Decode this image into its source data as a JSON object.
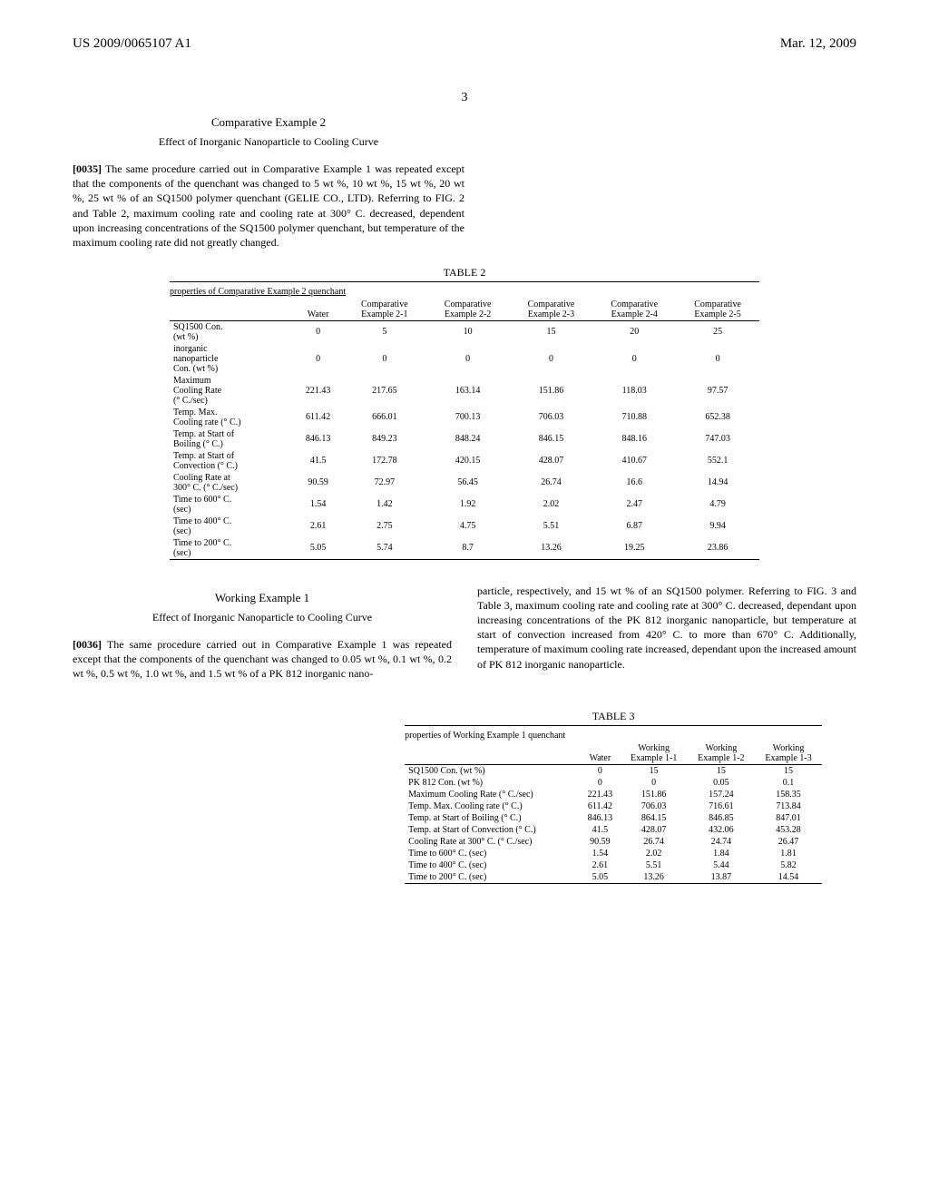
{
  "header": {
    "patent_id": "US 2009/0065107 A1",
    "date": "Mar. 12, 2009"
  },
  "page_number": "3",
  "sections": {
    "comp_ex2": {
      "title": "Comparative Example 2",
      "subtitle": "Effect of Inorganic Nanoparticle to Cooling Curve",
      "para_num": "[0035]",
      "para_text": "The same procedure carried out in Comparative Example 1 was repeated except that the components of the quenchant was changed to 5 wt %, 10 wt %, 15 wt %, 20 wt %, 25 wt % of an SQ1500 polymer quenchant (GELIE CO., LTD). Referring to FIG. 2 and Table 2, maximum cooling rate and cooling rate at 300° C. decreased, dependent upon increasing concentrations of the SQ1500 polymer quenchant, but temperature of the maximum cooling rate did not greatly changed."
    },
    "work_ex1": {
      "title": "Working Example 1",
      "subtitle": "Effect of Inorganic Nanoparticle to Cooling Curve",
      "para_num": "[0036]",
      "para_text_left": "The same procedure carried out in Comparative Example 1 was repeated except that the components of the quenchant was changed to 0.05 wt %, 0.1 wt %, 0.2 wt %, 0.5 wt %, 1.0 wt %, and 1.5 wt % of a PK 812 inorganic nano-",
      "para_text_right": "particle, respectively, and 15 wt % of an SQ1500 polymer. Referring to FIG. 3 and Table 3, maximum cooling rate and cooling rate at 300° C. decreased, dependant upon increasing concentrations of the PK 812 inorganic nanoparticle, but temperature at start of convection increased from 420° C. to more than 670° C. Additionally, temperature of maximum cooling rate increased, dependant upon the increased amount of PK 812 inorganic nanoparticle."
    }
  },
  "table2": {
    "label": "TABLE 2",
    "caption": "properties of Comparative Example 2 quenchant",
    "headers": [
      "",
      "Water",
      "Comparative\nExample 2-1",
      "Comparative\nExample 2-2",
      "Comparative\nExample 2-3",
      "Comparative\nExample 2-4",
      "Comparative\nExample 2-5"
    ],
    "rows": [
      [
        "SQ1500 Con.\n(wt %)",
        "0",
        "5",
        "10",
        "15",
        "20",
        "25"
      ],
      [
        "inorganic\nnanoparticle\nCon. (wt %)",
        "0",
        "0",
        "0",
        "0",
        "0",
        "0"
      ],
      [
        "Maximum\nCooling Rate\n(° C./sec)",
        "221.43",
        "217.65",
        "163.14",
        "151.86",
        "118.03",
        "97.57"
      ],
      [
        "Temp. Max.\nCooling rate (° C.)",
        "611.42",
        "666.01",
        "700.13",
        "706.03",
        "710.88",
        "652.38"
      ],
      [
        "Temp. at Start of\nBoiling (° C.)",
        "846.13",
        "849.23",
        "848.24",
        "846.15",
        "848.16",
        "747.03"
      ],
      [
        "Temp. at Start of\nConvection (° C.)",
        "41.5",
        "172.78",
        "420.15",
        "428.07",
        "410.67",
        "552.1"
      ],
      [
        "Cooling Rate at\n300° C. (° C./sec)",
        "90.59",
        "72.97",
        "56.45",
        "26.74",
        "16.6",
        "14.94"
      ],
      [
        "Time to 600° C.\n(sec)",
        "1.54",
        "1.42",
        "1.92",
        "2.02",
        "2.47",
        "4.79"
      ],
      [
        "Time to 400° C.\n(sec)",
        "2.61",
        "2.75",
        "4.75",
        "5.51",
        "6.87",
        "9.94"
      ],
      [
        "Time to 200° C.\n(sec)",
        "5.05",
        "5.74",
        "8.7",
        "13.26",
        "19.25",
        "23.86"
      ]
    ]
  },
  "table3": {
    "label": "TABLE 3",
    "caption": "properties of Working Example 1 quenchant",
    "headers": [
      "",
      "Water",
      "Working\nExample 1-1",
      "Working\nExample 1-2",
      "Working\nExample 1-3"
    ],
    "rows": [
      [
        "SQ1500 Con. (wt %)",
        "0",
        "15",
        "15",
        "15"
      ],
      [
        "PK 812 Con. (wt %)",
        "0",
        "0",
        "0.05",
        "0.1"
      ],
      [
        "Maximum Cooling Rate (° C./sec)",
        "221.43",
        "151.86",
        "157.24",
        "158.35"
      ],
      [
        "Temp. Max. Cooling rate (° C.)",
        "611.42",
        "706.03",
        "716.61",
        "713.84"
      ],
      [
        "Temp. at Start of Boiling (° C.)",
        "846.13",
        "864.15",
        "846.85",
        "847.01"
      ],
      [
        "Temp. at Start of Convection (° C.)",
        "41.5",
        "428.07",
        "432.06",
        "453.28"
      ],
      [
        "Cooling Rate at 300° C. (° C./sec)",
        "90.59",
        "26.74",
        "24.74",
        "26.47"
      ],
      [
        "Time to 600° C. (sec)",
        "1.54",
        "2.02",
        "1.84",
        "1.81"
      ],
      [
        "Time to 400° C. (sec)",
        "2.61",
        "5.51",
        "5.44",
        "5.82"
      ],
      [
        "Time to 200° C. (sec)",
        "5.05",
        "13.26",
        "13.87",
        "14.54"
      ]
    ]
  }
}
